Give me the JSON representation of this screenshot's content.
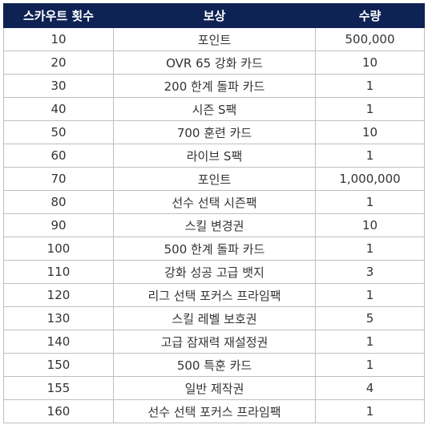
{
  "table": {
    "headers": [
      "스카우트 횟수",
      "보상",
      "수량"
    ],
    "rows": [
      [
        "10",
        "포인트",
        "500,000"
      ],
      [
        "20",
        "OVR 65 강화 카드",
        "10"
      ],
      [
        "30",
        "200 한계 돌파 카드",
        "1"
      ],
      [
        "40",
        "시즌 S팩",
        "1"
      ],
      [
        "50",
        "700 훈련 카드",
        "10"
      ],
      [
        "60",
        "라이브 S팩",
        "1"
      ],
      [
        "70",
        "포인트",
        "1,000,000"
      ],
      [
        "80",
        "선수 선택 시즌팩",
        "1"
      ],
      [
        "90",
        "스킬 변경권",
        "10"
      ],
      [
        "100",
        "500 한계 돌파 카드",
        "1"
      ],
      [
        "110",
        "강화 성공 고급 뱃지",
        "3"
      ],
      [
        "120",
        "리그 선택 포커스 프라임팩",
        "1"
      ],
      [
        "130",
        "스킬 레벨 보호권",
        "5"
      ],
      [
        "140",
        "고급 잠재력 재설정권",
        "1"
      ],
      [
        "150",
        "500 특훈 카드",
        "1"
      ],
      [
        "155",
        "일반 제작권",
        "4"
      ],
      [
        "160",
        "선수 선택 포커스 프라임팩",
        "1"
      ]
    ]
  },
  "colors": {
    "header_bg": "#0e2254",
    "header_text": "#ffffff",
    "border": "#bfbfbf",
    "cell_text": "#333333"
  }
}
